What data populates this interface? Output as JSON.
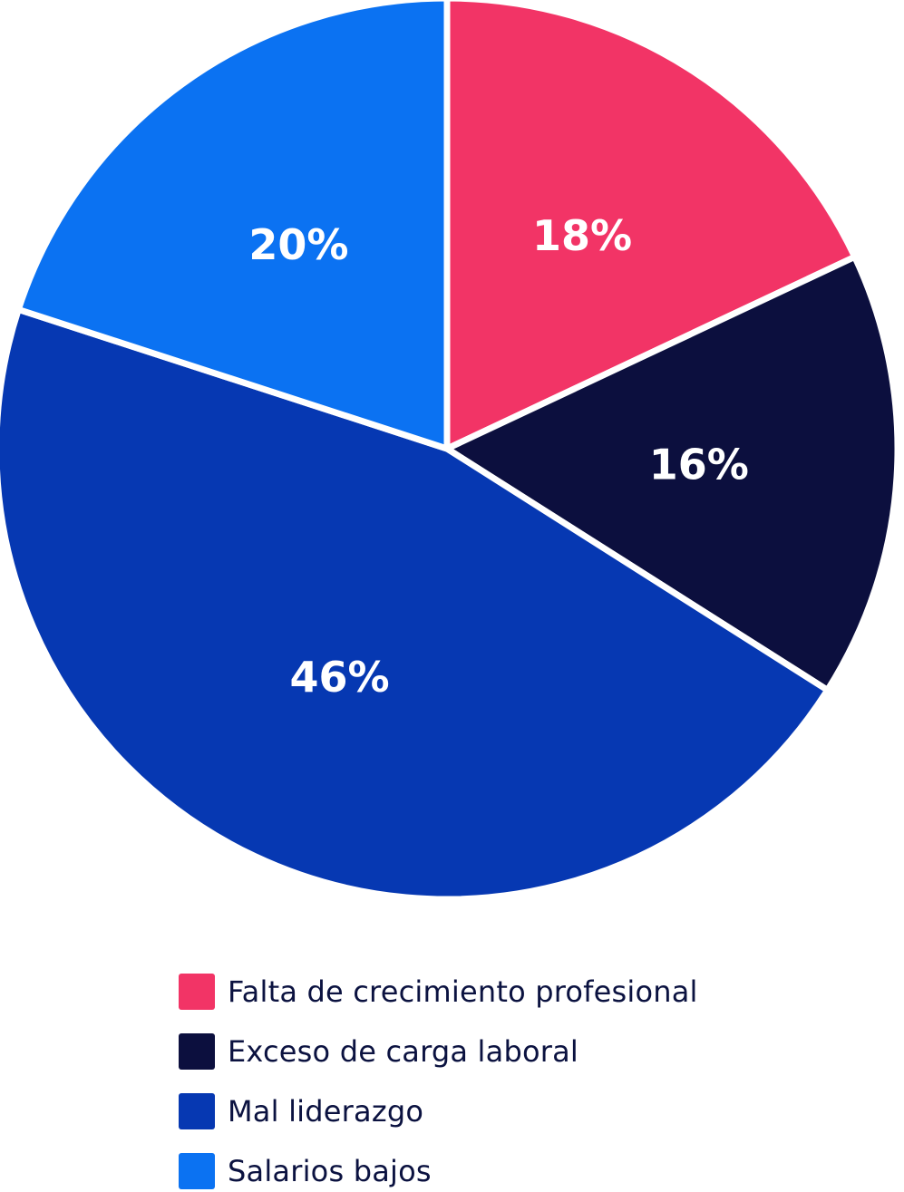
{
  "chart_data": {
    "type": "pie",
    "title": "",
    "slices": [
      {
        "name": "Falta de crecimiento profesional",
        "value": 18,
        "label": "18%",
        "color": "#f23466"
      },
      {
        "name": "Exceso de carga laboral",
        "value": 16,
        "label": "16%",
        "color": "#0c0f3e"
      },
      {
        "name": "Mal liderazgo",
        "value": 46,
        "label": "46%",
        "color": "#0638b2"
      },
      {
        "name": "Salarios bajos",
        "value": 20,
        "label": "20%",
        "color": "#0b72f2"
      }
    ],
    "legend_position": "bottom-center"
  }
}
